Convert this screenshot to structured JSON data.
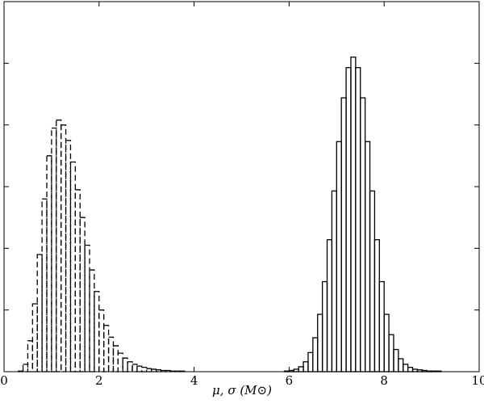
{
  "chart_data": {
    "type": "histogram",
    "xlabel": "μ, σ (M⊙)",
    "xlim": [
      0,
      10
    ],
    "xticks": [
      0,
      2,
      4,
      6,
      8,
      10
    ],
    "ylim": [
      0,
      6
    ],
    "yticks": [
      0,
      1,
      2,
      3,
      4,
      5,
      6
    ],
    "ytick_labels": false,
    "series": [
      {
        "color": "#000000",
        "linestyle": "dashed",
        "bins": [
          0.3,
          0.4,
          0.5,
          0.6,
          0.7,
          0.8,
          0.9,
          1.0,
          1.1,
          1.2,
          1.3,
          1.4,
          1.5,
          1.6,
          1.7,
          1.8,
          1.9,
          2.0,
          2.1,
          2.2,
          2.3,
          2.4,
          2.5,
          2.6,
          2.7,
          2.8,
          2.9,
          3.0,
          3.1,
          3.2,
          3.3,
          3.4,
          3.5,
          3.6,
          3.7,
          3.8,
          3.9,
          4.0
        ],
        "values": [
          0.01,
          0.12,
          0.5,
          1.1,
          1.9,
          2.8,
          3.5,
          3.95,
          4.08,
          4.0,
          3.75,
          3.4,
          2.95,
          2.5,
          2.05,
          1.65,
          1.3,
          1.0,
          0.75,
          0.56,
          0.42,
          0.3,
          0.22,
          0.16,
          0.12,
          0.09,
          0.07,
          0.05,
          0.04,
          0.03,
          0.02,
          0.02,
          0.01,
          0.01,
          0.01,
          0,
          0
        ]
      },
      {
        "color": "#000000",
        "linestyle": "solid",
        "bins": [
          5.6,
          5.7,
          5.8,
          5.9,
          6.0,
          6.1,
          6.2,
          6.3,
          6.4,
          6.5,
          6.6,
          6.7,
          6.8,
          6.9,
          7.0,
          7.1,
          7.2,
          7.3,
          7.4,
          7.5,
          7.6,
          7.7,
          7.8,
          7.9,
          8.0,
          8.1,
          8.2,
          8.3,
          8.4,
          8.5,
          8.6,
          8.7,
          8.8,
          8.9,
          9.0,
          9.1,
          9.2,
          9.3,
          9.4,
          9.5
        ],
        "values": [
          0,
          0,
          0,
          0.01,
          0.02,
          0.04,
          0.08,
          0.16,
          0.31,
          0.55,
          0.93,
          1.46,
          2.14,
          2.93,
          3.73,
          4.44,
          4.93,
          5.1,
          4.93,
          4.44,
          3.73,
          2.93,
          2.14,
          1.46,
          0.93,
          0.6,
          0.36,
          0.21,
          0.12,
          0.07,
          0.04,
          0.03,
          0.02,
          0.01,
          0.01,
          0.01,
          0,
          0,
          0
        ]
      }
    ]
  }
}
